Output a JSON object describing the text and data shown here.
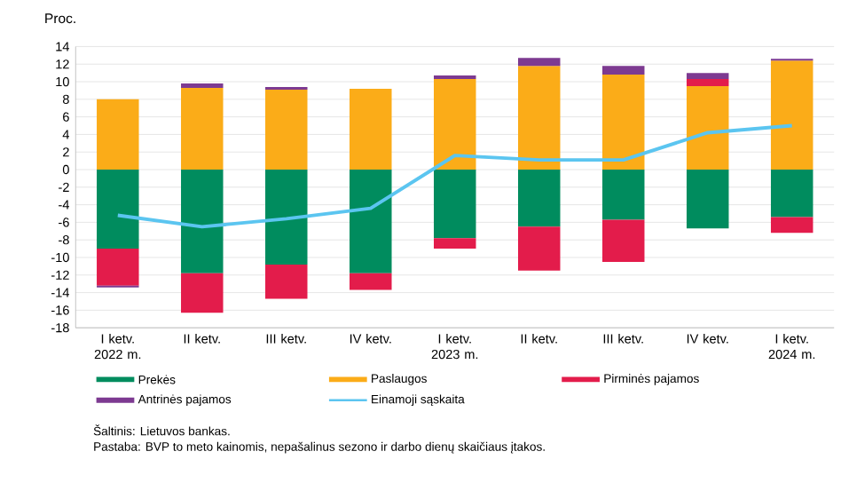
{
  "chart_data": {
    "type": "bar",
    "stacked": true,
    "ylabel": "Proc.",
    "categories": [
      "I ketv. 2022 m.",
      "II ketv.",
      "III ketv.",
      "IV ketv.",
      "I ketv. 2023 m.",
      "II ketv.",
      "III ketv.",
      "IV ketv.",
      "I ketv. 2024 m."
    ],
    "series": [
      {
        "name": "Prekės",
        "color": "#008c5e",
        "values": [
          -9.0,
          -11.8,
          -10.8,
          -11.8,
          -7.8,
          -6.5,
          -5.7,
          -6.7,
          -5.4
        ]
      },
      {
        "name": "Paslaugos",
        "color": "#fbac18",
        "values": [
          8.0,
          9.3,
          9.1,
          9.2,
          10.3,
          11.8,
          10.8,
          9.5,
          12.4
        ]
      },
      {
        "name": "Pirminės pajamos",
        "color": "#e31c4b",
        "values": [
          -4.2,
          -4.5,
          -3.9,
          -1.9,
          -1.2,
          -5.0,
          -4.8,
          0.8,
          -1.8
        ]
      },
      {
        "name": "Antrinės pajamos",
        "color": "#7d3a91",
        "values": [
          -0.2,
          0.5,
          0.3,
          0.0,
          0.4,
          0.9,
          1.0,
          0.7,
          0.2
        ]
      },
      {
        "name": "Einamoji sąskaita",
        "type": "line",
        "color": "#5bc5f0",
        "values": [
          -5.2,
          -6.5,
          -5.6,
          -4.4,
          1.6,
          1.1,
          1.1,
          4.2,
          5.0
        ]
      }
    ],
    "ylim": [
      -18,
      14
    ],
    "yticks": [
      -18,
      -16,
      -14,
      -12,
      -10,
      -8,
      -6,
      -4,
      -2,
      0,
      2,
      4,
      6,
      8,
      10,
      12,
      14
    ],
    "grid": "y",
    "legend": "bottom",
    "annotations": [
      "Šaltinis: Lietuvos bankas.",
      "Pastaba: BVP to meto kainomis, nepašalinus sezono ir darbo dienų skaičiaus įtakos."
    ]
  }
}
